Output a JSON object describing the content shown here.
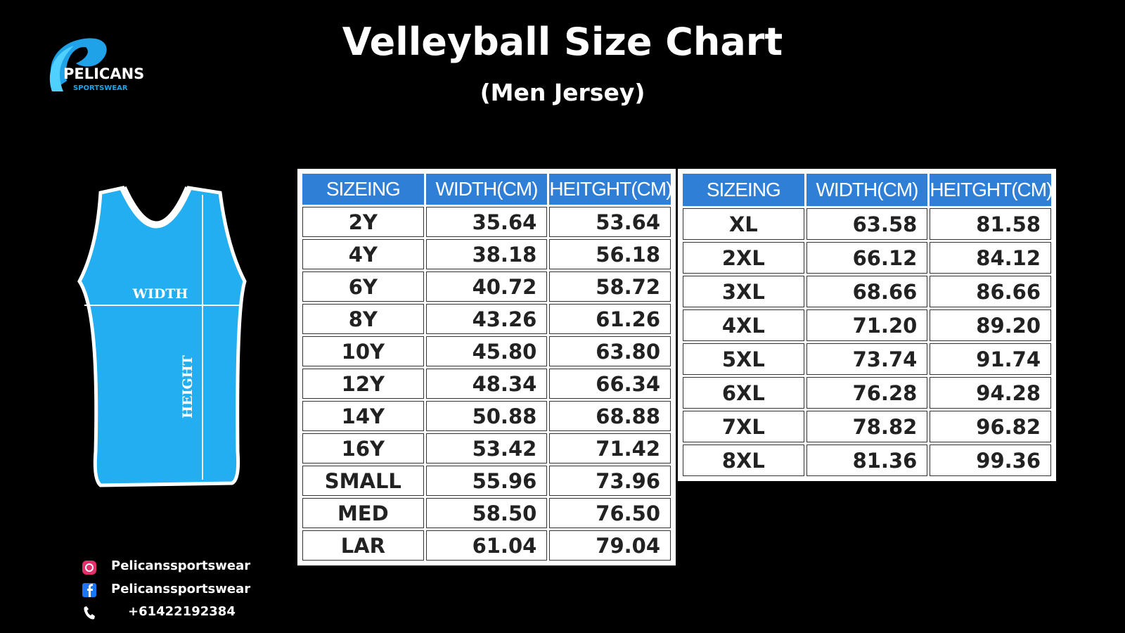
{
  "header": {
    "title": "Velleyball Size Chart",
    "subtitle": "(Men Jersey)"
  },
  "logo": {
    "name": "PELICANS",
    "tagline": "SPORTSWEAR"
  },
  "jersey": {
    "width_label": "WIDTH",
    "height_label": "HEIGHT"
  },
  "tables": [
    {
      "header": [
        "SIZEING",
        "WIDTH(CM)",
        "HEITGHT(CM)"
      ],
      "rows": [
        [
          "2Y",
          "35.64",
          "53.64"
        ],
        [
          "4Y",
          "38.18",
          "56.18"
        ],
        [
          "6Y",
          "40.72",
          "58.72"
        ],
        [
          "8Y",
          "43.26",
          "61.26"
        ],
        [
          "10Y",
          "45.80",
          "63.80"
        ],
        [
          "12Y",
          "48.34",
          "66.34"
        ],
        [
          "14Y",
          "50.88",
          "68.88"
        ],
        [
          "16Y",
          "53.42",
          "71.42"
        ],
        [
          "SMALL",
          "55.96",
          "73.96"
        ],
        [
          "MED",
          "58.50",
          "76.50"
        ],
        [
          "LAR",
          "61.04",
          "79.04"
        ]
      ]
    },
    {
      "header": [
        "SIZEING",
        "WIDTH(CM)",
        "HEITGHT(CM)"
      ],
      "rows": [
        [
          "XL",
          "63.58",
          "81.58"
        ],
        [
          "2XL",
          "66.12",
          "84.12"
        ],
        [
          "3XL",
          "68.66",
          "86.66"
        ],
        [
          "4XL",
          "71.20",
          "89.20"
        ],
        [
          "5XL",
          "73.74",
          "91.74"
        ],
        [
          "6XL",
          "76.28",
          "94.28"
        ],
        [
          "7XL",
          "78.82",
          "96.82"
        ],
        [
          "8XL",
          "81.36",
          "99.36"
        ]
      ]
    }
  ],
  "contacts": {
    "instagram": "Pelicanssportswear",
    "facebook": "Pelicanssportswear",
    "phone": "+61422192384"
  }
}
